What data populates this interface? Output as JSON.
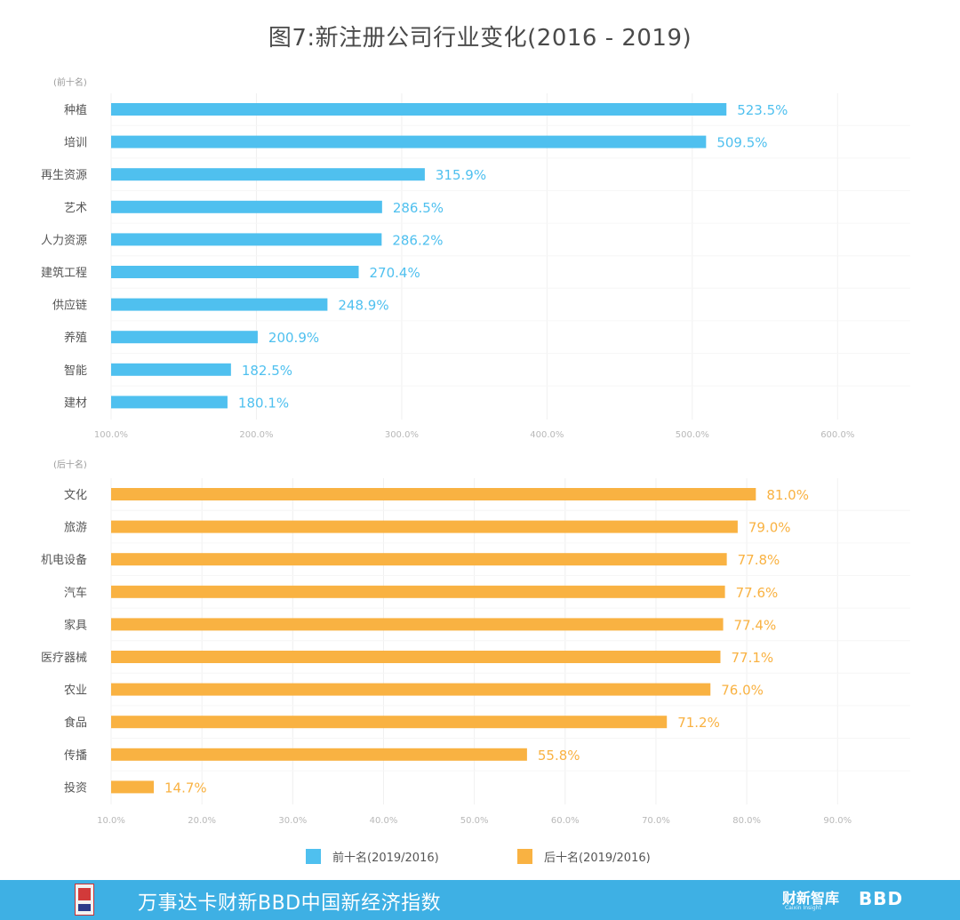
{
  "title": "图7:新注册公司行业变化(2016 - 2019)",
  "colors": {
    "top": "#4fc0ef",
    "bottom": "#f9b242",
    "axis_text": "#b8b8b8",
    "grid": "#f0f0f0",
    "label": "#555555"
  },
  "chart_data": [
    {
      "type": "bar",
      "orientation": "horizontal",
      "group_label": "(前十名)",
      "series_name": "前十名(2019/2016)",
      "categories": [
        "种植",
        "培训",
        "再生资源",
        "艺术",
        "人力资源",
        "建筑工程",
        "供应链",
        "养殖",
        "智能",
        "建材"
      ],
      "values": [
        523.5,
        509.5,
        315.9,
        286.5,
        286.2,
        270.4,
        248.9,
        200.9,
        182.5,
        180.1
      ],
      "value_labels": [
        "523.5%",
        "509.5%",
        "315.9%",
        "286.5%",
        "286.2%",
        "270.4%",
        "248.9%",
        "200.9%",
        "182.5%",
        "180.1%"
      ],
      "xlim": [
        100,
        650
      ],
      "ticks": [
        100,
        200,
        300,
        400,
        500,
        600
      ],
      "tick_labels": [
        "100.0%",
        "200.0%",
        "300.0%",
        "400.0%",
        "500.0%",
        "600.0%"
      ]
    },
    {
      "type": "bar",
      "orientation": "horizontal",
      "group_label": "(后十名)",
      "series_name": "后十名(2019/2016)",
      "categories": [
        "文化",
        "旅游",
        "机电设备",
        "汽车",
        "家具",
        "医疗器械",
        "农业",
        "食品",
        "传播",
        "投资"
      ],
      "values": [
        81.0,
        79.0,
        77.8,
        77.6,
        77.4,
        77.1,
        76.0,
        71.2,
        55.8,
        14.7
      ],
      "value_labels": [
        "81.0%",
        "79.0%",
        "77.8%",
        "77.6%",
        "77.4%",
        "77.1%",
        "76.0%",
        "71.2%",
        "55.8%",
        "14.7%"
      ],
      "xlim": [
        10,
        98
      ],
      "ticks": [
        10,
        20,
        30,
        40,
        50,
        60,
        70,
        80,
        90
      ],
      "tick_labels": [
        "10.0%",
        "20.0%",
        "30.0%",
        "40.0%",
        "50.0%",
        "60.0%",
        "70.0%",
        "80.0%",
        "90.0%"
      ]
    }
  ],
  "legend": [
    {
      "label": "前十名(2019/2016)",
      "color": "#4fc0ef"
    },
    {
      "label": "后十名(2019/2016)",
      "color": "#f9b242"
    }
  ],
  "footer": {
    "text": "万事达卡财新BBD中国新经济指数",
    "brand1": "财新智库",
    "brand1_sub": "Caixin Insight",
    "brand2": "BBD"
  }
}
